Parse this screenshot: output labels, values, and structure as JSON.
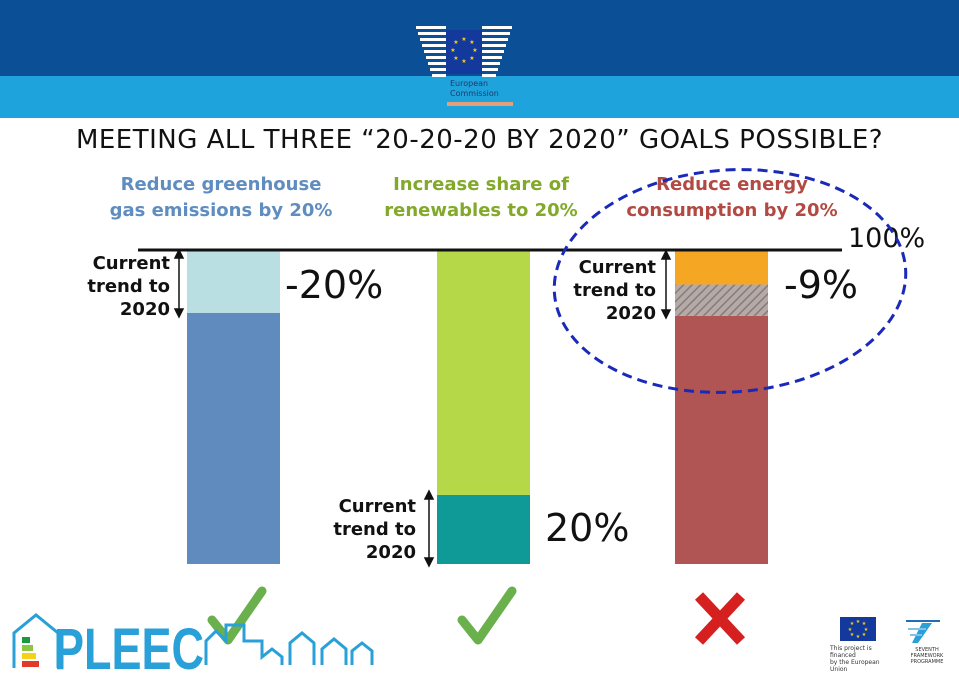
{
  "header": {
    "logo_text": [
      "European",
      "Commission"
    ]
  },
  "title": "MEETING ALL THREE “20-20-20 BY 2020” GOALS POSSIBLE?",
  "goals": [
    {
      "line1": "Reduce greenhouse",
      "line2": "gas emissions by 20%"
    },
    {
      "line1": "Increase share of",
      "line2": "renewables to 20%"
    },
    {
      "line1": "Reduce energy",
      "line2": "consumption by 20%"
    }
  ],
  "trend_labels": [
    {
      "line1": "Current",
      "line2": "trend to",
      "line3": "2020"
    },
    {
      "line1": "Current",
      "line2": "trend to",
      "line3": "2020"
    },
    {
      "line1": "Current",
      "line2": "trend to",
      "line3": "2020"
    }
  ],
  "value_labels": {
    "ghg": "-20%",
    "renewables": "20%",
    "energy": "-9%",
    "baseline": "100%"
  },
  "status_icons": [
    "check-icon",
    "check-icon",
    "cross-icon"
  ],
  "footer": {
    "project_logo": "PLEEC",
    "eu_note": [
      "This project is financed",
      "by the European Union"
    ],
    "fp7_note": [
      "SEVENTH FRAMEWORK",
      "PROGRAMME"
    ]
  },
  "chart_data": {
    "type": "bar",
    "categories": [
      "Reduce greenhouse gas emissions by 20%",
      "Increase share of renewables to 20%",
      "Reduce energy consumption by 20%"
    ],
    "ylim": [
      0,
      100
    ],
    "baseline_label": "100%",
    "bars": [
      {
        "segments": [
          {
            "from": 0,
            "to": 80,
            "color": "#5f8bbf"
          },
          {
            "from": 80,
            "to": 100,
            "color": "#b9dfe3"
          }
        ],
        "label": "-20%"
      },
      {
        "segments": [
          {
            "from": 0,
            "to": 22,
            "color": "#0f9a98"
          },
          {
            "from": 22,
            "to": 100,
            "color": "#b4d847"
          }
        ],
        "label": "20%"
      },
      {
        "segments": [
          {
            "from": 0,
            "to": 79,
            "color": "#b05553"
          },
          {
            "from": 79,
            "to": 89,
            "color": "#a6a6a6",
            "pattern": "hatch"
          },
          {
            "from": 89,
            "to": 100,
            "color": "#f5a623"
          }
        ],
        "label": "-9%"
      }
    ],
    "colors": {
      "highlight_ellipse": "#1a2ab8",
      "check": "#6ab04c",
      "cross": "#d61f1f"
    }
  }
}
